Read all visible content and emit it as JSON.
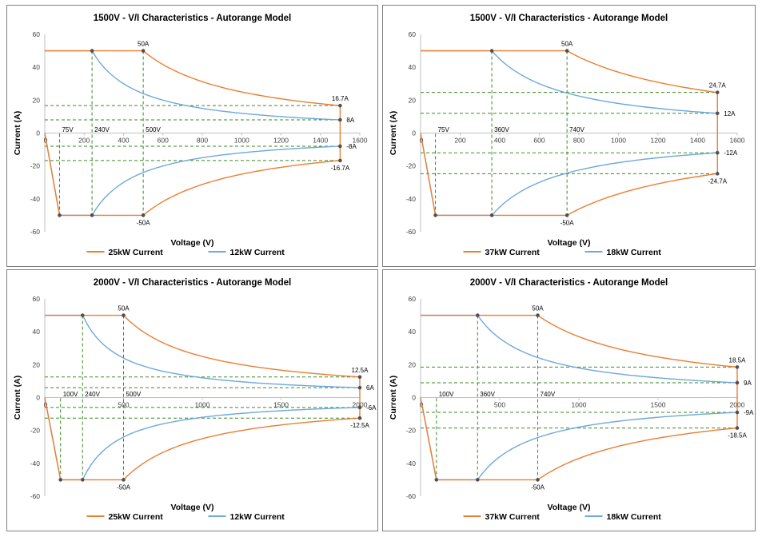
{
  "colors": {
    "orange": "#ED7D31",
    "blue": "#6FA8DC",
    "guide": "#3A8A22",
    "marker": "#505050",
    "axis": "#BFBFBF"
  },
  "chart_data": [
    {
      "type": "line",
      "title": "1500V - V/I Characteristics - Autorange Model",
      "xlabel": "Voltage (V)",
      "ylabel": "Current (A)",
      "xlim": [
        0,
        1600
      ],
      "ylim": [
        -60,
        60
      ],
      "xticks": [
        "200",
        "400",
        "600",
        "800",
        "1000",
        "1200",
        "1400",
        "1600"
      ],
      "yticks": [
        "60",
        "40",
        "20",
        "0",
        "-20",
        "-40",
        "-60"
      ],
      "zero_label": "0",
      "series": [
        {
          "name": "25kW Current",
          "color": "#ED7D31",
          "power_kw": 25,
          "imax": 50,
          "vmin": 75,
          "vmax": 1500,
          "imin_at_vmax": 16.7
        },
        {
          "name": "12kW Current",
          "color": "#6FA8DC",
          "power_kw": 12,
          "imax": 50,
          "vmin": 75,
          "vmax": 1500,
          "imin_at_vmax": 8
        }
      ],
      "annotations": [
        {
          "text": "50A",
          "x": 500,
          "y": 50,
          "pos": "above"
        },
        {
          "text": "-50A",
          "x": 500,
          "y": -50,
          "pos": "below"
        },
        {
          "text": "16.7A",
          "x": 1500,
          "y": 16.7,
          "pos": "above"
        },
        {
          "text": "8A",
          "x": 1500,
          "y": 8,
          "pos": "right"
        },
        {
          "text": "-8A",
          "x": 1500,
          "y": -8,
          "pos": "right"
        },
        {
          "text": "-16.7A",
          "x": 1500,
          "y": -16.7,
          "pos": "below"
        },
        {
          "text": "75V",
          "x": 75,
          "y": 0,
          "pos": "vlabel"
        },
        {
          "text": "240V",
          "x": 240,
          "y": 0,
          "pos": "vlabel"
        },
        {
          "text": "500V",
          "x": 500,
          "y": 0,
          "pos": "vlabel"
        }
      ]
    },
    {
      "type": "line",
      "title": "1500V - V/I Characteristics - Autorange Model",
      "xlabel": "Voltage (V)",
      "ylabel": "Current (A)",
      "xlim": [
        0,
        1600
      ],
      "ylim": [
        -60,
        60
      ],
      "xticks": [
        "200",
        "400",
        "600",
        "800",
        "1000",
        "1200",
        "1400",
        "1600"
      ],
      "yticks": [
        "60",
        "40",
        "20",
        "0",
        "-20",
        "-40",
        "-60"
      ],
      "zero_label": "0",
      "series": [
        {
          "name": "37kW Current",
          "color": "#ED7D31",
          "power_kw": 37,
          "imax": 50,
          "vmin": 75,
          "vmax": 1500,
          "imin_at_vmax": 24.7
        },
        {
          "name": "18kW Current",
          "color": "#6FA8DC",
          "power_kw": 18,
          "imax": 50,
          "vmin": 75,
          "vmax": 1500,
          "imin_at_vmax": 12
        }
      ],
      "annotations": [
        {
          "text": "50A",
          "x": 740,
          "y": 50,
          "pos": "above"
        },
        {
          "text": "-50A",
          "x": 740,
          "y": -50,
          "pos": "below"
        },
        {
          "text": "24.7A",
          "x": 1500,
          "y": 24.7,
          "pos": "above"
        },
        {
          "text": "12A",
          "x": 1500,
          "y": 12,
          "pos": "right"
        },
        {
          "text": "-12A",
          "x": 1500,
          "y": -12,
          "pos": "right"
        },
        {
          "text": "-24.7A",
          "x": 1500,
          "y": -24.7,
          "pos": "below"
        },
        {
          "text": "75V",
          "x": 75,
          "y": 0,
          "pos": "vlabel"
        },
        {
          "text": "360V",
          "x": 360,
          "y": 0,
          "pos": "vlabel"
        },
        {
          "text": "740V",
          "x": 740,
          "y": 0,
          "pos": "vlabel"
        }
      ]
    },
    {
      "type": "line",
      "title": "2000V - V/I Characteristics - Autorange Model",
      "xlabel": "Voltage (V)",
      "ylabel": "Current (A)",
      "xlim": [
        0,
        2000
      ],
      "ylim": [
        -60,
        60
      ],
      "xticks": [
        "500",
        "1000",
        "1500",
        "2000"
      ],
      "yticks": [
        "60",
        "40",
        "20",
        "0",
        "-20",
        "-40",
        "-60"
      ],
      "zero_label": "0",
      "series": [
        {
          "name": "25kW Current",
          "color": "#ED7D31",
          "power_kw": 25,
          "imax": 50,
          "vmin": 100,
          "vmax": 2000,
          "imin_at_vmax": 12.5
        },
        {
          "name": "12kW Current",
          "color": "#6FA8DC",
          "power_kw": 12,
          "imax": 50,
          "vmin": 100,
          "vmax": 2000,
          "imin_at_vmax": 6
        }
      ],
      "annotations": [
        {
          "text": "50A",
          "x": 500,
          "y": 50,
          "pos": "above"
        },
        {
          "text": "-50A",
          "x": 500,
          "y": -50,
          "pos": "below"
        },
        {
          "text": "12.5A",
          "x": 2000,
          "y": 12.5,
          "pos": "above"
        },
        {
          "text": "6A",
          "x": 2000,
          "y": 6,
          "pos": "right"
        },
        {
          "text": "-6A",
          "x": 2000,
          "y": -6,
          "pos": "right"
        },
        {
          "text": "-12.5A",
          "x": 2000,
          "y": -12.5,
          "pos": "below"
        },
        {
          "text": "100V",
          "x": 100,
          "y": 0,
          "pos": "vlabel"
        },
        {
          "text": "240V",
          "x": 240,
          "y": 0,
          "pos": "vlabel"
        },
        {
          "text": "500V",
          "x": 500,
          "y": 0,
          "pos": "vlabel"
        }
      ]
    },
    {
      "type": "line",
      "title": "2000V - V/I Characteristics - Autorange Model",
      "xlabel": "Voltage (V)",
      "ylabel": "Current (A)",
      "xlim": [
        0,
        2000
      ],
      "ylim": [
        -60,
        60
      ],
      "xticks": [
        "500",
        "1000",
        "1500",
        "2000"
      ],
      "yticks": [
        "60",
        "40",
        "20",
        "0",
        "-20",
        "-40",
        "-60"
      ],
      "zero_label": "0",
      "series": [
        {
          "name": "37kW Current",
          "color": "#ED7D31",
          "power_kw": 37,
          "imax": 50,
          "vmin": 100,
          "vmax": 2000,
          "imin_at_vmax": 18.5
        },
        {
          "name": "18kW Current",
          "color": "#6FA8DC",
          "power_kw": 18,
          "imax": 50,
          "vmin": 100,
          "vmax": 2000,
          "imin_at_vmax": 9
        }
      ],
      "annotations": [
        {
          "text": "50A",
          "x": 740,
          "y": 50,
          "pos": "above"
        },
        {
          "text": "-50A",
          "x": 740,
          "y": -50,
          "pos": "below"
        },
        {
          "text": "18.5A",
          "x": 2000,
          "y": 18.5,
          "pos": "above"
        },
        {
          "text": "9A",
          "x": 2000,
          "y": 9,
          "pos": "right"
        },
        {
          "text": "-9A",
          "x": 2000,
          "y": -9,
          "pos": "right"
        },
        {
          "text": "-18.5A",
          "x": 2000,
          "y": -18.5,
          "pos": "below"
        },
        {
          "text": "100V",
          "x": 100,
          "y": 0,
          "pos": "vlabel"
        },
        {
          "text": "360V",
          "x": 360,
          "y": 0,
          "pos": "vlabel"
        },
        {
          "text": "740V",
          "x": 740,
          "y": 0,
          "pos": "vlabel"
        }
      ]
    }
  ]
}
